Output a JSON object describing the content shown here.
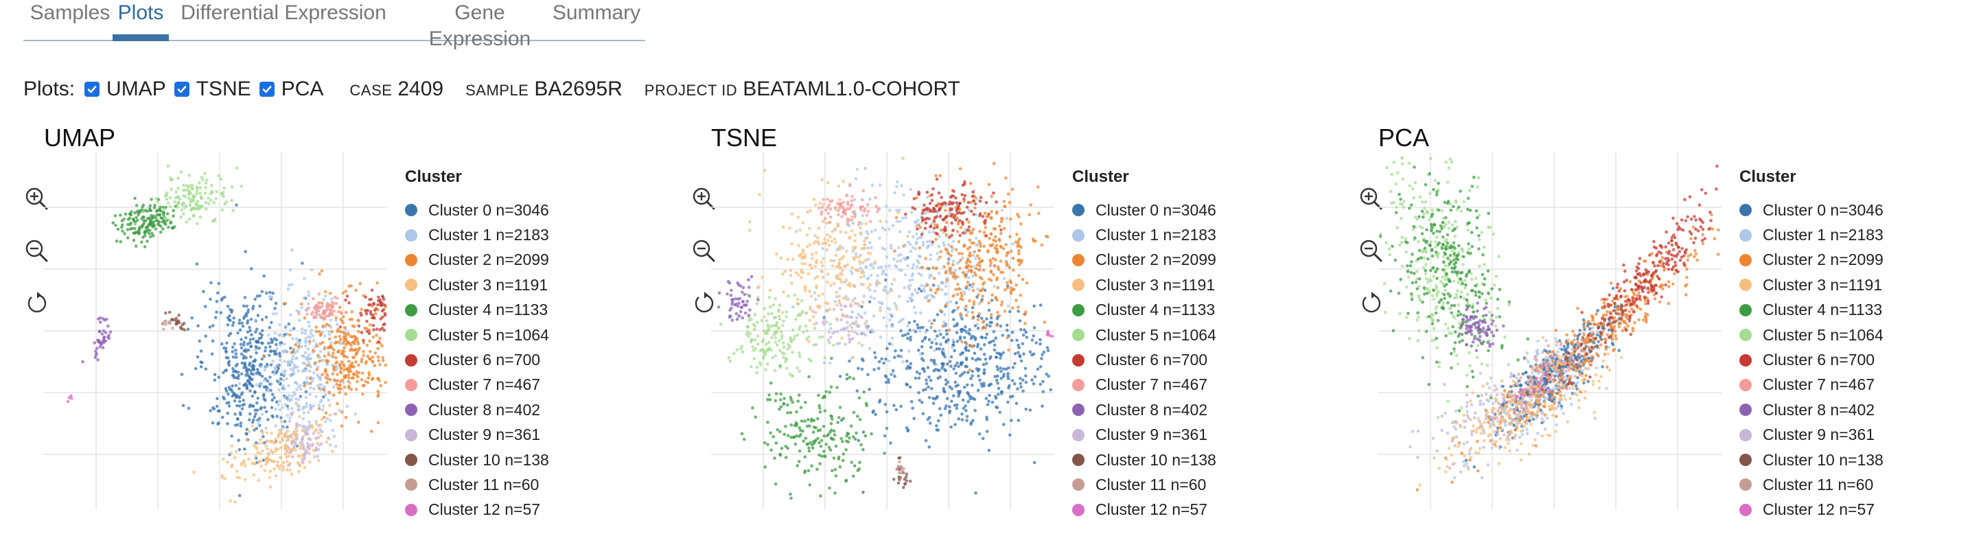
{
  "tabs": [
    {
      "label": "Samples",
      "active": false
    },
    {
      "label": "Plots",
      "active": true
    },
    {
      "label": "Differential Expression",
      "active": false
    },
    {
      "label": "Gene Expression",
      "active": false
    },
    {
      "label": "Summary",
      "active": false
    }
  ],
  "controls": {
    "plots_label": "Plots:",
    "checkboxes": [
      {
        "label": "UMAP",
        "checked": true
      },
      {
        "label": "TSNE",
        "checked": true
      },
      {
        "label": "PCA",
        "checked": true
      }
    ],
    "meta": [
      {
        "key": "CASE",
        "value": "2409"
      },
      {
        "key": "SAMPLE",
        "value": "BA2695R"
      },
      {
        "key": "PROJECT ID",
        "value": "BEATAML1.0-COHORT"
      }
    ]
  },
  "toolbar_icons": [
    "zoom-in-icon",
    "zoom-out-icon",
    "reset-icon"
  ],
  "legend_title": "Cluster",
  "clusters": [
    {
      "label": "Cluster 0 n=3046",
      "color": "#3a74ad"
    },
    {
      "label": "Cluster 1 n=2183",
      "color": "#aec7e8"
    },
    {
      "label": "Cluster 2 n=2099",
      "color": "#ee8530"
    },
    {
      "label": "Cluster 3 n=1191",
      "color": "#f6bf80"
    },
    {
      "label": "Cluster 4 n=1133",
      "color": "#3e9c42"
    },
    {
      "label": "Cluster 5 n=1064",
      "color": "#a6dc92"
    },
    {
      "label": "Cluster 6 n=700",
      "color": "#c33b32"
    },
    {
      "label": "Cluster 7 n=467",
      "color": "#f39c9a"
    },
    {
      "label": "Cluster 8 n=402",
      "color": "#8c62b4"
    },
    {
      "label": "Cluster 9 n=361",
      "color": "#c8b7d8"
    },
    {
      "label": "Cluster 10 n=138",
      "color": "#845649"
    },
    {
      "label": "Cluster 11 n=60",
      "color": "#c59c94"
    },
    {
      "label": "Cluster 12 n=57",
      "color": "#d96ec4"
    }
  ],
  "plots": [
    {
      "title": "UMAP",
      "chart_data": {
        "type": "scatter"
      }
    },
    {
      "title": "TSNE",
      "chart_data": {
        "type": "scatter"
      }
    },
    {
      "title": "PCA",
      "chart_data": {
        "type": "scatter"
      }
    }
  ]
}
